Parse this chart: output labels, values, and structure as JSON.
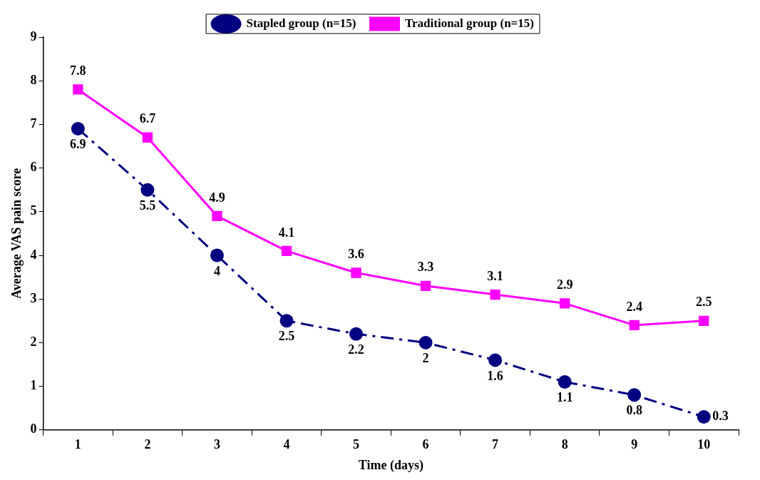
{
  "chart_data": {
    "type": "line",
    "xlabel": "Time (days)",
    "ylabel": "Average VAS pain score",
    "categories": [
      "1",
      "2",
      "3",
      "4",
      "5",
      "6",
      "7",
      "8",
      "9",
      "10"
    ],
    "series": [
      {
        "name": "Stapled group (n=15)",
        "color": "#000080",
        "marker": "circle",
        "line_style": "dashdot",
        "values": [
          6.9,
          5.5,
          4,
          2.5,
          2.2,
          2,
          1.6,
          1.1,
          0.8,
          0.3
        ]
      },
      {
        "name": "Traditional group (n=15)",
        "color": "#ff00ff",
        "marker": "square",
        "line_style": "solid",
        "values": [
          7.8,
          6.7,
          4.9,
          4.1,
          3.6,
          3.3,
          3.1,
          2.9,
          2.4,
          2.5
        ]
      }
    ],
    "ylim": [
      0,
      9
    ],
    "yticks": [
      0,
      1,
      2,
      3,
      4,
      5,
      6,
      7,
      8,
      9
    ],
    "grid": false,
    "legend": "top",
    "data_labels": true
  }
}
